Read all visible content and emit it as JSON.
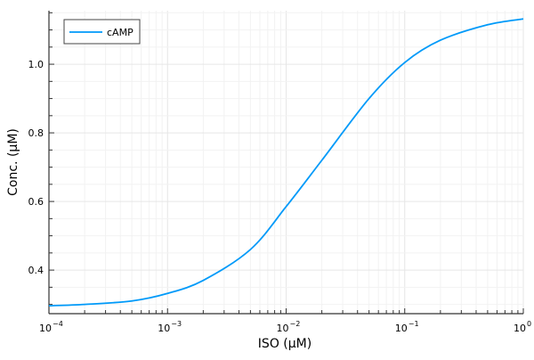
{
  "chart_data": {
    "type": "line",
    "title": "",
    "xlabel": "ISO (μM)",
    "ylabel": "Conc. (μM)",
    "xscale": "log10",
    "xlim": [
      0.0001,
      1
    ],
    "ylim": [
      0.273,
      1.156
    ],
    "x_ticks": [
      {
        "value": 0.0001,
        "base": "10",
        "exp": "−4"
      },
      {
        "value": 0.001,
        "base": "10",
        "exp": "−3"
      },
      {
        "value": 0.01,
        "base": "10",
        "exp": "−2"
      },
      {
        "value": 0.1,
        "base": "10",
        "exp": "−1"
      },
      {
        "value": 1,
        "base": "10",
        "exp": "0"
      }
    ],
    "y_ticks": [
      "0.4",
      "0.6",
      "0.8",
      "1.0"
    ],
    "y_tick_values": [
      0.4,
      0.6,
      0.8,
      1.0
    ],
    "grid": true,
    "legend": {
      "position": "top-left",
      "entries": [
        "cAMP"
      ]
    },
    "series": [
      {
        "name": "cAMP",
        "color": "#009af9",
        "x": [
          0.0001,
          0.0002,
          0.0005,
          0.001,
          0.002,
          0.005,
          0.01,
          0.02,
          0.05,
          0.1,
          0.2,
          0.5,
          1.0
        ],
        "values": [
          0.296,
          0.3,
          0.31,
          0.332,
          0.37,
          0.46,
          0.585,
          0.72,
          0.9,
          1.005,
          1.07,
          1.115,
          1.132
        ]
      }
    ]
  },
  "legend": {
    "label": "cAMP"
  },
  "axes": {
    "xlabel": "ISO (μM)",
    "ylabel": "Conc. (μM)"
  }
}
